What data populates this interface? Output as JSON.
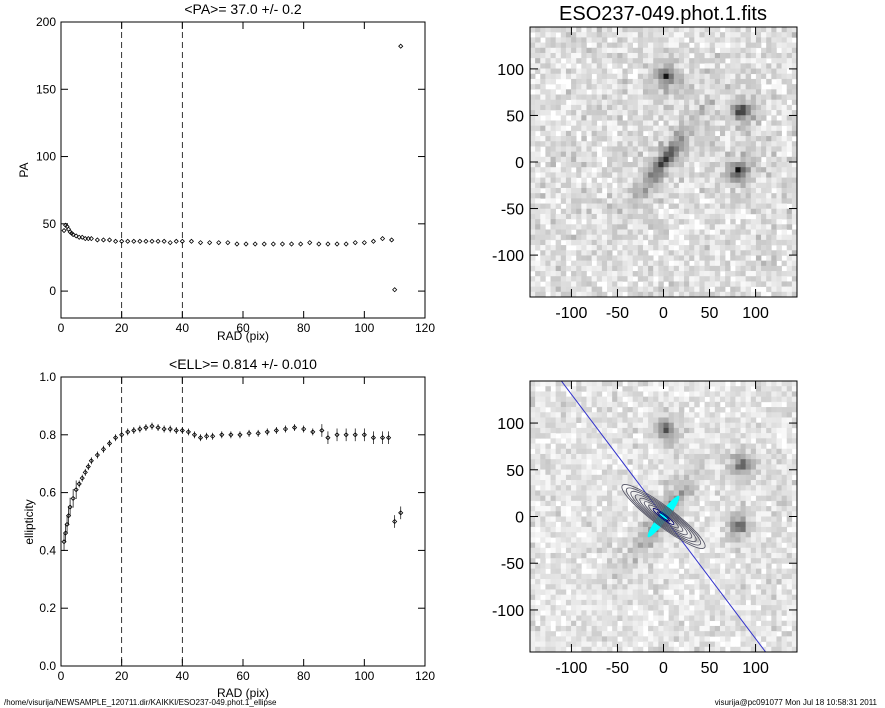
{
  "footer": {
    "left": "/home/visurija/NEWSAMPLE_120711.dir/KAIKKI/ESO237-049.phot.1_ellipse",
    "right": "visurija@pc091077  Mon Jul 18 10:58:31 2011"
  },
  "chart_data": [
    {
      "type": "scatter",
      "title": "<PA>=  37.0 +/-   0.2",
      "xlabel": "RAD (pix)",
      "ylabel": "PA",
      "xlim": [
        0,
        120
      ],
      "ylim": [
        -20,
        200
      ],
      "xticks": [
        "0",
        "20",
        "40",
        "60",
        "80",
        "100",
        "120"
      ],
      "yticks": [
        "0",
        "50",
        "100",
        "150",
        "200"
      ],
      "vlines_dashed": [
        20,
        40
      ],
      "grid": false,
      "x": [
        1.0,
        1.5,
        2.0,
        2.5,
        3.0,
        3.5,
        4,
        5,
        6,
        7,
        8,
        9,
        10,
        12,
        14,
        16,
        18,
        20,
        22,
        24,
        26,
        28,
        30,
        32,
        34,
        36,
        38,
        40,
        43,
        46,
        49,
        52,
        55,
        58,
        61,
        64,
        67,
        70,
        73,
        76,
        79,
        82,
        85,
        88,
        91,
        94,
        97,
        100,
        103,
        106,
        109,
        110,
        112
      ],
      "y": [
        45,
        49,
        48,
        46,
        44,
        43,
        42,
        41,
        40,
        40,
        39,
        39,
        39,
        38,
        38,
        38,
        37,
        37,
        37,
        37,
        37,
        37,
        37,
        37,
        37,
        36,
        37,
        37,
        37,
        36,
        36,
        36,
        36,
        35,
        35,
        35,
        35,
        35,
        35,
        35,
        35,
        36,
        35,
        35,
        35,
        35,
        36,
        36,
        37,
        39,
        38,
        1,
        182
      ]
    },
    {
      "type": "scatter",
      "title": "<ELL>= 0.814 +/-  0.010",
      "xlabel": "RAD (pix)",
      "ylabel": "ellipticity",
      "xlim": [
        0,
        120
      ],
      "ylim": [
        0,
        1
      ],
      "xticks": [
        "0",
        "20",
        "40",
        "60",
        "80",
        "100",
        "120"
      ],
      "yticks": [
        "0.0",
        "0.2",
        "0.4",
        "0.6",
        "0.8",
        "1.0"
      ],
      "vlines_dashed": [
        20,
        40
      ],
      "grid": false,
      "x": [
        1,
        1.5,
        2,
        2.5,
        3,
        4,
        5,
        6,
        7,
        8,
        9,
        10,
        12,
        14,
        16,
        18,
        20,
        22,
        24,
        26,
        28,
        30,
        32,
        34,
        36,
        38,
        40,
        42,
        44,
        46,
        48,
        50,
        53,
        56,
        59,
        62,
        65,
        68,
        71,
        74,
        77,
        80,
        83,
        86,
        88,
        91,
        94,
        97,
        100,
        103,
        106,
        108,
        110,
        112
      ],
      "y": [
        0.43,
        0.46,
        0.49,
        0.52,
        0.55,
        0.58,
        0.61,
        0.63,
        0.65,
        0.67,
        0.69,
        0.71,
        0.73,
        0.75,
        0.77,
        0.79,
        0.8,
        0.81,
        0.815,
        0.82,
        0.825,
        0.83,
        0.825,
        0.82,
        0.82,
        0.815,
        0.815,
        0.81,
        0.8,
        0.79,
        0.795,
        0.795,
        0.8,
        0.8,
        0.8,
        0.805,
        0.805,
        0.81,
        0.815,
        0.82,
        0.825,
        0.82,
        0.81,
        0.815,
        0.79,
        0.8,
        0.8,
        0.8,
        0.8,
        0.79,
        0.79,
        0.79,
        0.5,
        0.53
      ]
    },
    {
      "type": "heatmap",
      "title": "ESO237-049.phot.1.fits",
      "xlim": [
        -145,
        145
      ],
      "ylim": [
        -145,
        145
      ],
      "xticks": [
        "-100",
        "-50",
        "0",
        "50",
        "100"
      ],
      "yticks": [
        "-100",
        "-50",
        "0",
        "50",
        "100"
      ],
      "colormap": "grayscale inverted",
      "sources": [
        {
          "x": 0,
          "y": 0,
          "semi_major": 75,
          "axis_ratio": 0.19,
          "pa_deg": 37,
          "kind": "galaxy"
        },
        {
          "x": 3,
          "y": 93,
          "kind": "star"
        },
        {
          "x": 82,
          "y": -10,
          "kind": "star"
        },
        {
          "x": 85,
          "y": 55,
          "kind": "star"
        }
      ]
    },
    {
      "type": "heatmap",
      "title": "",
      "xlim": [
        -145,
        145
      ],
      "ylim": [
        -145,
        145
      ],
      "xticks": [
        "-100",
        "-50",
        "0",
        "50",
        "100"
      ],
      "yticks": [
        "-100",
        "-50",
        "0",
        "50",
        "100"
      ],
      "colormap": "grayscale with contours",
      "contour_colors": [
        "#000066",
        "#00ffff"
      ],
      "major_axis_line_color": "#3333cc",
      "contours": {
        "x": 0,
        "y": 0,
        "pa_deg": 37,
        "axis_ratio": 0.19,
        "semi_major": [
          8,
          14,
          20,
          26,
          32,
          38,
          44,
          50,
          56
        ]
      }
    }
  ]
}
